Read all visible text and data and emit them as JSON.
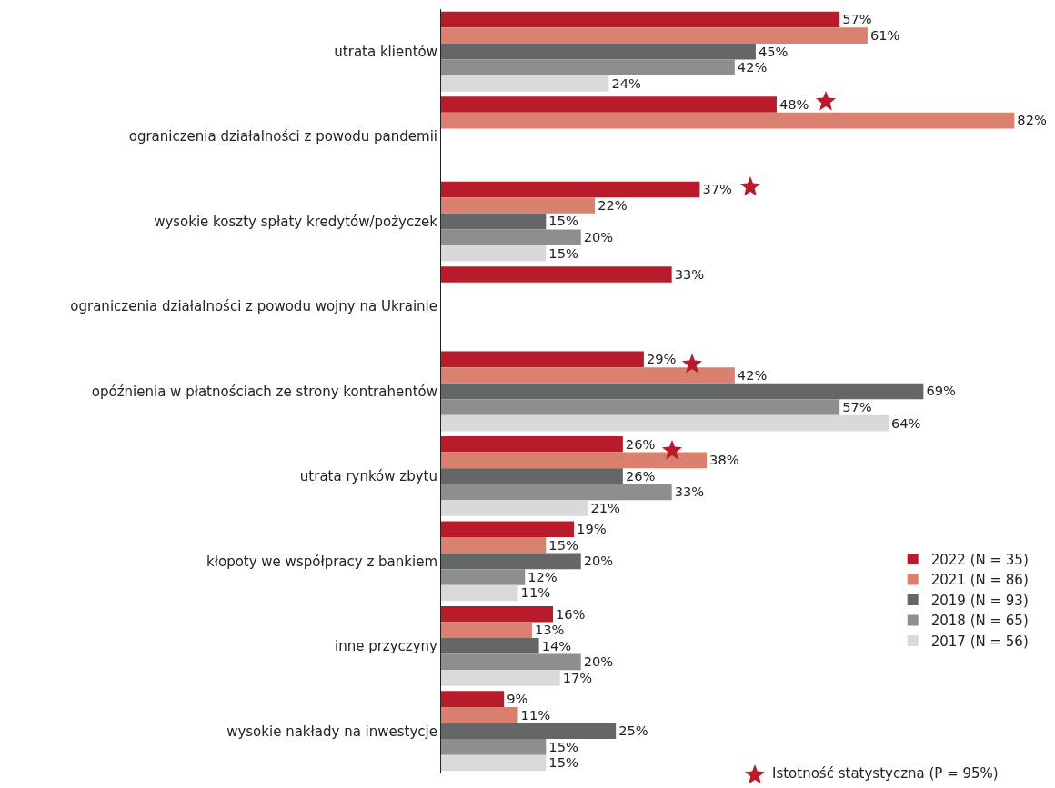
{
  "chart_data": {
    "type": "bar",
    "orientation": "horizontal",
    "legend": "bottom right",
    "categories": [
      "utrata klientów",
      "ograniczenia działalności z powodu pandemii",
      "wysokie koszty spłaty kredytów/pożyczek",
      "ograniczenia działalności z powodu wojny na Ukrainie",
      "opóźnienia w płatnościach ze strony kontrahentów",
      "utrata rynków zbytu",
      "kłopoty we współpracy z bankiem",
      "inne przyczyny",
      "wysokie nakłady na inwestycje"
    ],
    "series": [
      {
        "name": "2022 (N = 35)",
        "color": "#b81c2a",
        "values": [
          57,
          48,
          37,
          33,
          29,
          26,
          19,
          16,
          9
        ],
        "value_labels": [
          "57%",
          "48%",
          "37%",
          "33%",
          "29%",
          "26%",
          "19%",
          "16%",
          "9%"
        ]
      },
      {
        "name": "2021 (N = 86)",
        "color": "#d9806f",
        "values": [
          61,
          82,
          22,
          null,
          42,
          38,
          15,
          13,
          11
        ],
        "value_labels": [
          "61%",
          "82%",
          "22%",
          null,
          "42%",
          "38%",
          "15%",
          "13%",
          "11%"
        ]
      },
      {
        "name": "2019 (N = 93)",
        "color": "#646668",
        "values": [
          45,
          null,
          15,
          null,
          69,
          26,
          20,
          14,
          25
        ],
        "value_labels": [
          "45%",
          null,
          "15%",
          null,
          "69%",
          "26%",
          "20%",
          "14%",
          "25%"
        ]
      },
      {
        "name": "2018 (N = 65)",
        "color": "#8c8e90",
        "values": [
          42,
          null,
          20,
          null,
          57,
          33,
          12,
          20,
          15
        ],
        "value_labels": [
          "42%",
          null,
          "20%",
          null,
          "57%",
          "33%",
          "12%",
          "20%",
          "15%"
        ]
      },
      {
        "name": "2017 (N = 56)",
        "color": "#d9d9d9",
        "values": [
          24,
          null,
          15,
          null,
          64,
          21,
          11,
          17,
          15
        ],
        "value_labels": [
          "24%",
          null,
          "15%",
          null,
          "64%",
          "21%",
          "11%",
          "17%",
          "15%"
        ]
      }
    ],
    "annotations": [
      "Istotność statystyczna (P = 95%)"
    ]
  }
}
